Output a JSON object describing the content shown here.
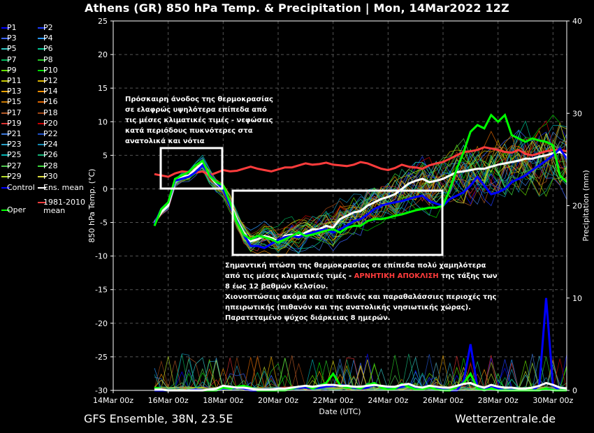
{
  "title": "Athens  (GR)  850 hPa Temp. & Precipitation | Mon, 14Mar2022 12Z",
  "footer": {
    "left": "GFS Ensemble, 38N, 23.5E",
    "right": "Wetterzentrale.de"
  },
  "legend": [
    {
      "name": "P1",
      "color": "#0000ff"
    },
    {
      "name": "P2",
      "color": "#1e3cff"
    },
    {
      "name": "P3",
      "color": "#3c64ff"
    },
    {
      "name": "P4",
      "color": "#2896ff"
    },
    {
      "name": "P5",
      "color": "#32c8c8"
    },
    {
      "name": "P6",
      "color": "#00c896"
    },
    {
      "name": "P7",
      "color": "#00b45a"
    },
    {
      "name": "P8",
      "color": "#28c828"
    },
    {
      "name": "P9",
      "color": "#64dc00"
    },
    {
      "name": "P10",
      "color": "#00dc00"
    },
    {
      "name": "P11",
      "color": "#c8c800"
    },
    {
      "name": "P12",
      "color": "#dcb400"
    },
    {
      "name": "P13",
      "color": "#e6a000"
    },
    {
      "name": "P14",
      "color": "#f08c00"
    },
    {
      "name": "P15",
      "color": "#c87800"
    },
    {
      "name": "P16",
      "color": "#dc6400"
    },
    {
      "name": "P17",
      "color": "#b45a28"
    },
    {
      "name": "P18",
      "color": "#a04614"
    },
    {
      "name": "P19",
      "color": "#dc3232"
    },
    {
      "name": "P20",
      "color": "#c80000"
    },
    {
      "name": "P21",
      "color": "#3c78dc"
    },
    {
      "name": "P22",
      "color": "#1e50c8"
    },
    {
      "name": "P23",
      "color": "#28a0c8"
    },
    {
      "name": "P24",
      "color": "#148cb4"
    },
    {
      "name": "P25",
      "color": "#00b4b4"
    },
    {
      "name": "P26",
      "color": "#14b478"
    },
    {
      "name": "P27",
      "color": "#50c850"
    },
    {
      "name": "P28",
      "color": "#3cdc3c"
    },
    {
      "name": "P29",
      "color": "#b4dc28"
    },
    {
      "name": "P30",
      "color": "#dcdc3c"
    },
    {
      "name": "Control",
      "color": "#0000ff"
    },
    {
      "name": "Ens. mean",
      "color": "#ffffff"
    },
    {
      "name": "Oper",
      "color": "#00ff00"
    },
    {
      "name": "1981-2010 mean",
      "color": "#ff3c3c"
    }
  ],
  "annotations": {
    "top": [
      "Πρόσκαιρη άνοδος της θερμοκρασίας",
      "σε ελαφρώς υψηλότερα επίπεδα από",
      "τις μέσες κλιματικές τιμές - νεφώσεις",
      "κατά περιόδους πυκνότερες στα",
      "ανατολικά και νότια"
    ],
    "bottom_l1": "Σημαντική πτώση της θερμοκρασίας σε επίπεδα πολύ χαμηλότερα",
    "bottom_l2_pre": "από τις μέσες κλιματικές τιμές - ",
    "bottom_l2_warn": "ΑΡΝΗΤΙΚΗ ΑΠΟΚΛΙΣΗ",
    "bottom_l2_post": " της τάξης των",
    "bottom_l3": "8 έως 12 βαθμών Κελσίου.",
    "bottom_l4": "Χιονοπτώσεις ακόμα και σε πεδινές και παραθαλάσσιες περιοχές της",
    "bottom_l5": "ηπειρωτικής (πιθανόν και της ανατολικής νησιωτικής χώρας).",
    "bottom_l6": "Παρατεταμένο ψύχος διάρκειας 8 ημερών."
  },
  "chart_data": {
    "type": "line",
    "title": "Athens  (GR)  850 hPa Temp. & Precipitation | Mon, 14Mar2022 12Z",
    "xlabel": "Date (UTC)",
    "ylabel": "850 hPa Temp. (°C)",
    "y2label": "Precipitation (mm)",
    "ylim": [
      -30,
      25
    ],
    "y2lim": [
      0,
      40
    ],
    "yticks": [
      25,
      20,
      15,
      10,
      5,
      0,
      -5,
      -10,
      -15,
      -20,
      -25,
      -30
    ],
    "y2ticks": [
      40,
      30,
      20,
      10,
      0
    ],
    "xlim": [
      0,
      16.5
    ],
    "xticks": [
      {
        "x": 0,
        "label": "14Mar 00z"
      },
      {
        "x": 2,
        "label": "16Mar 00z"
      },
      {
        "x": 4,
        "label": "18Mar 00z"
      },
      {
        "x": 6,
        "label": "20Mar 00z"
      },
      {
        "x": 8,
        "label": "22Mar 00z"
      },
      {
        "x": 10,
        "label": "24Mar 00z"
      },
      {
        "x": 12,
        "label": "26Mar 00z"
      },
      {
        "x": 14,
        "label": "28Mar 00z"
      },
      {
        "x": 16,
        "label": "30Mar 00z"
      }
    ],
    "grid": true,
    "legend_position": "left",
    "x": [
      1.5,
      1.75,
      2,
      2.25,
      2.5,
      2.75,
      3,
      3.25,
      3.5,
      3.75,
      4,
      4.25,
      4.5,
      4.75,
      5,
      5.25,
      5.5,
      5.75,
      6,
      6.25,
      6.5,
      6.75,
      7,
      7.25,
      7.5,
      7.75,
      8,
      8.25,
      8.5,
      8.75,
      9,
      9.25,
      9.5,
      9.75,
      10,
      10.25,
      10.5,
      10.75,
      11,
      11.25,
      11.5,
      11.75,
      12,
      12.25,
      12.5,
      12.75,
      13,
      13.25,
      13.5,
      13.75,
      14,
      14.25,
      14.5,
      14.75,
      15,
      15.25,
      15.5,
      15.75,
      16,
      16.25,
      16.5
    ],
    "series": [
      {
        "name": "1981-2010 mean",
        "color": "#ff3c3c",
        "width": 3,
        "values": [
          2.2,
          2.0,
          1.8,
          2.3,
          2.6,
          2.5,
          2.4,
          2.6,
          2.0,
          2.4,
          2.8,
          2.6,
          2.7,
          3.0,
          3.3,
          3.0,
          2.8,
          2.6,
          2.9,
          3.2,
          3.2,
          3.5,
          3.8,
          3.6,
          3.7,
          3.9,
          3.6,
          3.5,
          3.4,
          3.6,
          4.0,
          3.8,
          3.4,
          3.0,
          2.8,
          3.1,
          3.6,
          3.3,
          3.2,
          3.0,
          3.5,
          3.8,
          4.0,
          4.5,
          5.0,
          5.5,
          5.6,
          5.8,
          6.2,
          6.0,
          5.8,
          5.5,
          5.4,
          5.8,
          5.2,
          5.0,
          5.3,
          5.6,
          5.8,
          5.8,
          5.6
        ]
      },
      {
        "name": "Ens. mean",
        "color": "#ffffff",
        "width": 3,
        "values": [
          -5.0,
          -3.5,
          -2.5,
          1.0,
          1.8,
          2.0,
          3.0,
          3.8,
          2.0,
          0.8,
          0.0,
          -2.0,
          -4.5,
          -6.5,
          -7.8,
          -7.5,
          -7.0,
          -7.3,
          -7.8,
          -7.0,
          -6.8,
          -7.0,
          -6.5,
          -6.0,
          -6.0,
          -5.5,
          -5.8,
          -4.5,
          -4.0,
          -3.5,
          -3.3,
          -2.5,
          -2.0,
          -1.5,
          -1.2,
          -0.8,
          0.0,
          0.8,
          1.2,
          1.5,
          1.0,
          1.2,
          1.5,
          2.0,
          2.5,
          2.6,
          2.8,
          3.0,
          3.0,
          3.3,
          3.6,
          3.8,
          4.0,
          4.2,
          4.5,
          4.5,
          4.8,
          5.0,
          5.3,
          5.5,
          5.0
        ]
      },
      {
        "name": "Control",
        "color": "#0000ff",
        "width": 3,
        "values": [
          -5.2,
          -3.0,
          -2.0,
          1.2,
          1.5,
          1.8,
          2.5,
          3.5,
          2.2,
          1.0,
          0.0,
          -2.5,
          -4.8,
          -6.8,
          -8.5,
          -8.5,
          -8.8,
          -8.2,
          -7.6,
          -7.2,
          -7.0,
          -7.2,
          -6.8,
          -6.5,
          -6.2,
          -6.0,
          -6.5,
          -6.0,
          -5.5,
          -4.8,
          -4.5,
          -3.8,
          -3.0,
          -2.5,
          -2.2,
          -2.0,
          -1.8,
          -1.5,
          -1.2,
          -1.0,
          -1.8,
          -2.2,
          -2.5,
          -1.5,
          -1.0,
          -0.5,
          0.5,
          1.8,
          0.5,
          -0.8,
          -0.5,
          0.0,
          1.0,
          1.5,
          2.0,
          2.8,
          3.5,
          4.2,
          5.0,
          6.0,
          4.5
        ]
      },
      {
        "name": "Oper",
        "color": "#00ff00",
        "width": 3,
        "values": [
          -5.5,
          -3.0,
          -2.0,
          1.5,
          2.0,
          2.5,
          3.5,
          4.2,
          2.0,
          1.0,
          0.5,
          -2.0,
          -5.0,
          -6.8,
          -7.5,
          -7.0,
          -7.2,
          -7.5,
          -8.0,
          -7.5,
          -7.0,
          -6.5,
          -7.0,
          -6.8,
          -6.5,
          -6.2,
          -6.0,
          -6.5,
          -5.8,
          -5.5,
          -5.5,
          -4.8,
          -4.5,
          -4.5,
          -4.3,
          -4.0,
          -3.8,
          -3.5,
          -3.2,
          -3.0,
          -2.8,
          -2.8,
          -2.5,
          0.0,
          3.0,
          5.5,
          8.5,
          9.5,
          9.0,
          11.0,
          10.0,
          11.0,
          8.0,
          7.5,
          7.0,
          7.5,
          7.2,
          7.0,
          6.5,
          2.0,
          1.0
        ]
      }
    ],
    "precip_series": [
      {
        "name": "Control",
        "color": "#0000ff",
        "width": 3,
        "values": [
          0.0,
          0.0,
          0.0,
          0.0,
          0.0,
          0.0,
          0.1,
          0.0,
          0.0,
          0.0,
          0.2,
          0.2,
          0.3,
          0.2,
          0.0,
          0.0,
          0.0,
          0.0,
          0.0,
          0.1,
          0.2,
          0.3,
          0.3,
          0.2,
          0.3,
          0.4,
          0.5,
          0.6,
          0.5,
          0.3,
          0.2,
          0.3,
          0.6,
          0.4,
          0.2,
          0.2,
          0.4,
          0.6,
          0.2,
          0.1,
          0.5,
          0.2,
          0.1,
          0.0,
          0.0,
          1.0,
          5.0,
          0.3,
          0.0,
          0.5,
          0.2,
          0.0,
          0.1,
          0.0,
          0.0,
          0.0,
          0.5,
          10.0,
          0.5,
          0.0,
          0.0
        ]
      },
      {
        "name": "Oper",
        "color": "#00ff00",
        "width": 3,
        "values": [
          0.3,
          0.1,
          0.0,
          0.0,
          0.0,
          0.0,
          0.0,
          0.0,
          0.0,
          0.0,
          0.3,
          0.2,
          0.4,
          0.5,
          0.3,
          0.0,
          0.0,
          0.0,
          0.0,
          0.0,
          0.2,
          0.4,
          0.5,
          0.2,
          0.5,
          0.8,
          1.8,
          0.6,
          0.3,
          0.4,
          0.2,
          0.6,
          0.8,
          0.3,
          0.1,
          0.2,
          0.7,
          0.4,
          0.1,
          0.1,
          0.4,
          0.1,
          0.0,
          0.0,
          0.4,
          0.8,
          1.8,
          0.2,
          0.0,
          0.2,
          0.0,
          0.0,
          0.0,
          0.0,
          0.0,
          0.0,
          0.0,
          0.2,
          0.0,
          0.0,
          0.0
        ]
      },
      {
        "name": "Ens. mean",
        "color": "#ffffff",
        "width": 3,
        "values": [
          0.1,
          0.1,
          0.0,
          0.0,
          0.0,
          0.0,
          0.0,
          0.0,
          0.1,
          0.2,
          0.5,
          0.4,
          0.3,
          0.3,
          0.2,
          0.1,
          0.1,
          0.1,
          0.2,
          0.2,
          0.3,
          0.4,
          0.5,
          0.4,
          0.5,
          0.6,
          0.6,
          0.5,
          0.5,
          0.4,
          0.4,
          0.5,
          0.6,
          0.5,
          0.4,
          0.4,
          0.6,
          0.7,
          0.4,
          0.3,
          0.5,
          0.4,
          0.3,
          0.3,
          0.5,
          0.7,
          0.8,
          0.5,
          0.3,
          0.6,
          0.4,
          0.3,
          0.3,
          0.2,
          0.2,
          0.3,
          0.5,
          0.8,
          0.6,
          0.3,
          0.2
        ]
      }
    ]
  }
}
